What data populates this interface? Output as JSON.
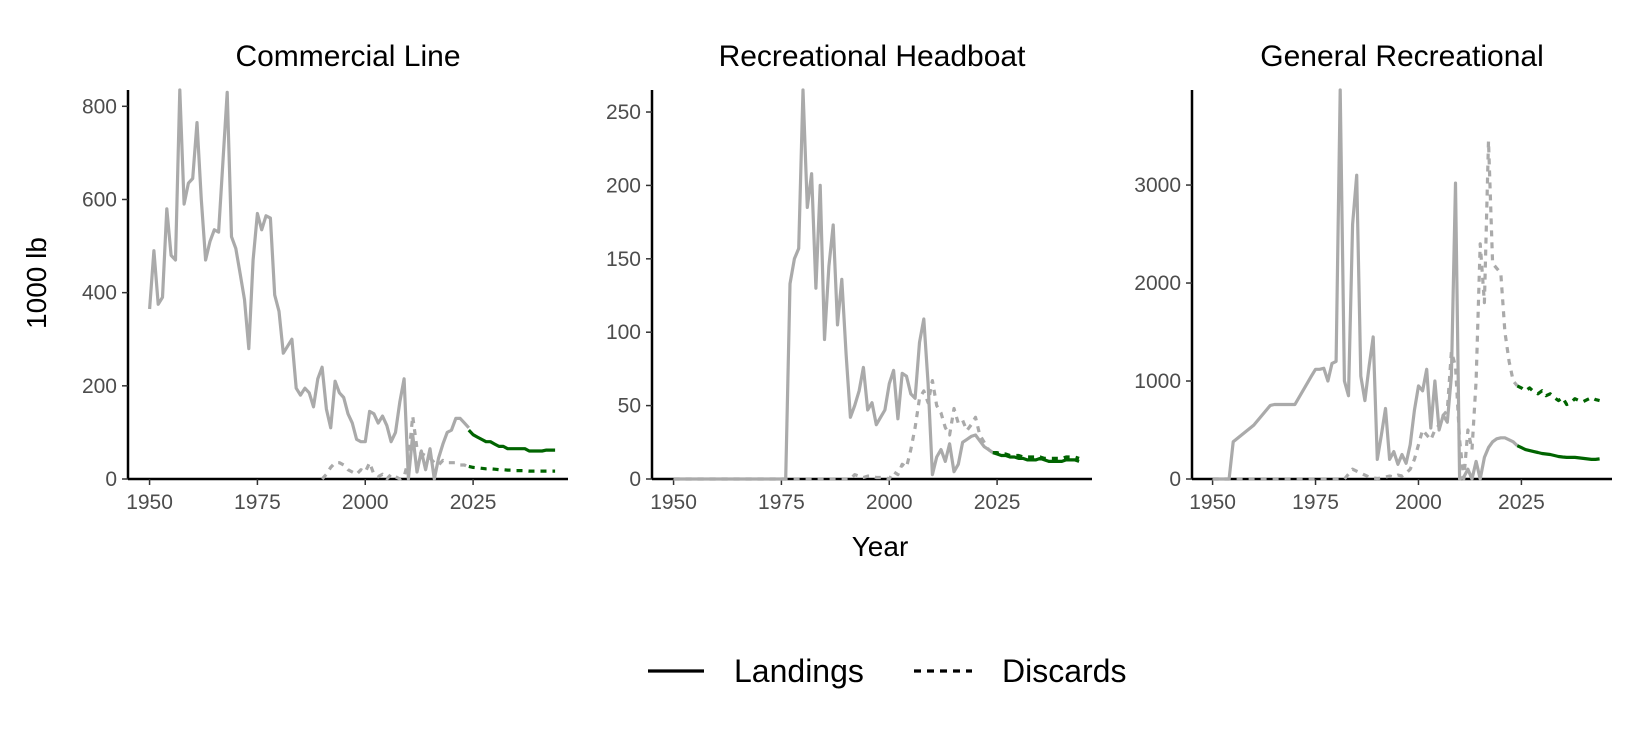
{
  "figure": {
    "ylabel": "1000 lb",
    "xlabel": "Year",
    "legend": {
      "placement": "bottom",
      "items": [
        {
          "label": "Landings",
          "linestyle": "solid"
        },
        {
          "label": "Discards",
          "linestyle": "dashed"
        }
      ]
    },
    "colors": {
      "historical": "#aaaaaa",
      "projection": "#006400",
      "axis": "#000000",
      "tick_text": "#4d4d4d"
    }
  },
  "chart_data": [
    {
      "type": "line",
      "title": "Commercial Line",
      "xlabel": "Year",
      "ylabel": "1000 lb",
      "xlim": [
        1945,
        2047
      ],
      "ylim": [
        0,
        835
      ],
      "xticks": [
        1950,
        1975,
        2000,
        2025
      ],
      "yticks": [
        0,
        200,
        400,
        600,
        800
      ],
      "grid": false,
      "series": [
        {
          "name": "Landings",
          "style": "solid",
          "period": "historical",
          "x": [
            1950,
            1951,
            1952,
            1953,
            1954,
            1955,
            1956,
            1957,
            1958,
            1959,
            1960,
            1961,
            1962,
            1963,
            1964,
            1965,
            1966,
            1967,
            1968,
            1969,
            1970,
            1971,
            1972,
            1973,
            1974,
            1975,
            1976,
            1977,
            1978,
            1979,
            1980,
            1981,
            1982,
            1983,
            1984,
            1985,
            1986,
            1987,
            1988,
            1989,
            1990,
            1991,
            1992,
            1993,
            1994,
            1995,
            1996,
            1997,
            1998,
            1999,
            2000,
            2001,
            2002,
            2003,
            2004,
            2005,
            2006,
            2007,
            2008,
            2009,
            2010,
            2011,
            2012,
            2013,
            2014,
            2015,
            2016,
            2017,
            2018,
            2019,
            2020,
            2021,
            2022,
            2023,
            2024
          ],
          "y": [
            365,
            490,
            375,
            390,
            580,
            480,
            470,
            835,
            590,
            635,
            645,
            765,
            600,
            470,
            510,
            535,
            530,
            680,
            830,
            520,
            495,
            440,
            385,
            280,
            470,
            570,
            535,
            565,
            560,
            395,
            360,
            270,
            285,
            300,
            195,
            180,
            195,
            185,
            155,
            215,
            240,
            150,
            110,
            210,
            185,
            175,
            140,
            120,
            85,
            80,
            80,
            145,
            140,
            120,
            135,
            115,
            80,
            100,
            165,
            215,
            0,
            95,
            15,
            60,
            20,
            65,
            0,
            45,
            75,
            100,
            105,
            130,
            130,
            120,
            110
          ]
        },
        {
          "name": "Discards",
          "style": "dashed",
          "period": "historical",
          "x": [
            1990,
            1991,
            1992,
            1993,
            1994,
            1995,
            1996,
            1997,
            1998,
            1999,
            2000,
            2001,
            2002,
            2003,
            2004,
            2005,
            2006,
            2007,
            2008,
            2009,
            2010,
            2011,
            2012,
            2013,
            2014,
            2015,
            2016,
            2017,
            2018,
            2019,
            2020,
            2021,
            2022,
            2023,
            2024
          ],
          "y": [
            0,
            10,
            25,
            35,
            35,
            30,
            20,
            15,
            10,
            20,
            15,
            35,
            10,
            5,
            10,
            0,
            10,
            5,
            0,
            5,
            40,
            135,
            65,
            55,
            50,
            45,
            35,
            30,
            40,
            35,
            35,
            35,
            30,
            30,
            25
          ]
        },
        {
          "name": "Landings",
          "style": "solid",
          "period": "projection",
          "x": [
            2024,
            2025,
            2026,
            2027,
            2028,
            2029,
            2030,
            2031,
            2032,
            2033,
            2034,
            2035,
            2036,
            2037,
            2038,
            2039,
            2040,
            2041,
            2042,
            2043,
            2044
          ],
          "y": [
            105,
            95,
            90,
            85,
            80,
            80,
            75,
            70,
            70,
            65,
            65,
            65,
            65,
            65,
            60,
            60,
            60,
            60,
            62,
            62,
            62
          ]
        },
        {
          "name": "Discards",
          "style": "dashed",
          "period": "projection",
          "x": [
            2024,
            2025,
            2026,
            2027,
            2028,
            2029,
            2030,
            2031,
            2032,
            2033,
            2034,
            2035,
            2036,
            2037,
            2038,
            2039,
            2040,
            2041,
            2042,
            2043,
            2044
          ],
          "y": [
            27,
            25,
            24,
            23,
            22,
            22,
            21,
            20,
            20,
            19,
            19,
            18,
            18,
            18,
            17,
            17,
            17,
            17,
            17,
            17,
            17
          ]
        }
      ]
    },
    {
      "type": "line",
      "title": "Recreational Headboat",
      "xlabel": "Year",
      "ylabel": "1000 lb",
      "xlim": [
        1945,
        2047
      ],
      "ylim": [
        0,
        265
      ],
      "xticks": [
        1950,
        1975,
        2000,
        2025
      ],
      "yticks": [
        0,
        50,
        100,
        150,
        200,
        250
      ],
      "grid": false,
      "series": [
        {
          "name": "Landings",
          "style": "solid",
          "period": "historical",
          "x": [
            1950,
            1976,
            1977,
            1978,
            1979,
            1980,
            1981,
            1982,
            1983,
            1984,
            1985,
            1986,
            1987,
            1988,
            1989,
            1990,
            1991,
            1992,
            1993,
            1994,
            1995,
            1996,
            1997,
            1998,
            1999,
            2000,
            2001,
            2002,
            2003,
            2004,
            2005,
            2006,
            2007,
            2008,
            2009,
            2010,
            2011,
            2012,
            2013,
            2014,
            2015,
            2016,
            2017,
            2018,
            2019,
            2020,
            2021,
            2022,
            2023,
            2024
          ],
          "y": [
            0,
            0,
            133,
            150,
            157,
            265,
            185,
            208,
            130,
            200,
            95,
            145,
            173,
            105,
            136,
            85,
            42,
            50,
            60,
            76,
            47,
            52,
            37,
            42,
            47,
            65,
            74,
            41,
            72,
            70,
            58,
            55,
            93,
            109,
            65,
            3,
            15,
            20,
            12,
            24,
            5,
            10,
            25,
            27,
            29,
            30,
            26,
            22,
            20,
            18
          ]
        },
        {
          "name": "Discards",
          "style": "dashed",
          "period": "historical",
          "x": [
            1950,
            1991,
            1992,
            1993,
            1994,
            1995,
            1996,
            1997,
            1998,
            1999,
            2000,
            2001,
            2002,
            2003,
            2004,
            2005,
            2006,
            2007,
            2008,
            2009,
            2010,
            2011,
            2012,
            2013,
            2014,
            2015,
            2016,
            2017,
            2018,
            2019,
            2020,
            2021,
            2022,
            2023,
            2024
          ],
          "y": [
            0,
            0,
            3,
            2,
            1,
            2,
            2,
            1,
            1,
            1,
            0,
            5,
            3,
            10,
            8,
            20,
            35,
            55,
            60,
            52,
            67,
            50,
            45,
            35,
            30,
            48,
            38,
            40,
            33,
            37,
            42,
            30,
            25,
            20,
            18
          ]
        },
        {
          "name": "Landings",
          "style": "solid",
          "period": "projection",
          "x": [
            2024,
            2025,
            2026,
            2027,
            2028,
            2029,
            2030,
            2031,
            2032,
            2033,
            2034,
            2035,
            2036,
            2037,
            2038,
            2039,
            2040,
            2041,
            2042,
            2043,
            2044
          ],
          "y": [
            18,
            17,
            16,
            16,
            15,
            15,
            14,
            14,
            13,
            13,
            13,
            14,
            13,
            12,
            12,
            12,
            12,
            13,
            13,
            13,
            12
          ]
        },
        {
          "name": "Discards",
          "style": "dashed",
          "period": "projection",
          "x": [
            2024,
            2025,
            2026,
            2027,
            2028,
            2029,
            2030,
            2031,
            2032,
            2033,
            2034,
            2035,
            2036,
            2037,
            2038,
            2039,
            2040,
            2041,
            2042,
            2043,
            2044
          ],
          "y": [
            18,
            18,
            17,
            17,
            16,
            16,
            16,
            15,
            15,
            15,
            15,
            15,
            14,
            14,
            14,
            14,
            14,
            15,
            15,
            15,
            14
          ]
        }
      ]
    },
    {
      "type": "line",
      "title": "General Recreational",
      "xlabel": "Year",
      "ylabel": "1000 lb",
      "xlim": [
        1945,
        2047
      ],
      "ylim": [
        0,
        3970
      ],
      "xticks": [
        1950,
        1975,
        2000,
        2025
      ],
      "yticks": [
        0,
        1000,
        2000,
        3000
      ],
      "grid": false,
      "series": [
        {
          "name": "Landings",
          "style": "solid",
          "period": "historical",
          "x": [
            1950,
            1954,
            1955,
            1960,
            1964,
            1965,
            1970,
            1974,
            1975,
            1976,
            1977,
            1978,
            1979,
            1980,
            1981,
            1982,
            1983,
            1984,
            1985,
            1986,
            1987,
            1988,
            1989,
            1990,
            1991,
            1992,
            1993,
            1994,
            1995,
            1996,
            1997,
            1998,
            1999,
            2000,
            2001,
            2002,
            2003,
            2004,
            2005,
            2006,
            2007,
            2008,
            2009,
            2010,
            2011,
            2012,
            2013,
            2014,
            2015,
            2016,
            2017,
            2018,
            2019,
            2020,
            2021,
            2022,
            2023,
            2024
          ],
          "y": [
            0,
            0,
            380,
            550,
            750,
            760,
            760,
            1050,
            1120,
            1120,
            1130,
            1000,
            1180,
            1200,
            3970,
            1000,
            850,
            2600,
            3100,
            1050,
            800,
            1150,
            1450,
            200,
            450,
            720,
            200,
            280,
            150,
            250,
            160,
            350,
            700,
            950,
            900,
            1120,
            520,
            1000,
            500,
            650,
            580,
            1050,
            3020,
            0,
            20,
            100,
            0,
            180,
            0,
            220,
            320,
            380,
            410,
            420,
            420,
            400,
            380,
            340
          ]
        },
        {
          "name": "Discards",
          "style": "dashed",
          "period": "historical",
          "x": [
            1950,
            1982,
            1983,
            1984,
            1985,
            1986,
            1987,
            1988,
            1989,
            1990,
            1991,
            1992,
            1993,
            1994,
            1995,
            1996,
            1997,
            1998,
            1999,
            2000,
            2001,
            2002,
            2003,
            2004,
            2005,
            2006,
            2007,
            2008,
            2009,
            2010,
            2011,
            2012,
            2013,
            2014,
            2015,
            2016,
            2017,
            2018,
            2019,
            2020,
            2021,
            2022,
            2023,
            2024
          ],
          "y": [
            0,
            0,
            50,
            100,
            80,
            60,
            40,
            20,
            10,
            5,
            10,
            20,
            30,
            20,
            40,
            30,
            60,
            100,
            200,
            350,
            500,
            450,
            400,
            500,
            550,
            650,
            700,
            1300,
            1150,
            400,
            0,
            500,
            300,
            1000,
            2400,
            1800,
            3450,
            2200,
            2150,
            2100,
            1500,
            1200,
            1000,
            950
          ]
        },
        {
          "name": "Landings",
          "style": "solid",
          "period": "projection",
          "x": [
            2024,
            2025,
            2026,
            2027,
            2028,
            2029,
            2030,
            2031,
            2032,
            2033,
            2034,
            2035,
            2036,
            2037,
            2038,
            2039,
            2040,
            2041,
            2042,
            2043,
            2044
          ],
          "y": [
            340,
            320,
            300,
            290,
            280,
            270,
            260,
            255,
            250,
            240,
            230,
            225,
            220,
            220,
            220,
            215,
            210,
            205,
            200,
            200,
            205
          ]
        },
        {
          "name": "Discards",
          "style": "dashed",
          "period": "projection",
          "x": [
            2024,
            2025,
            2026,
            2027,
            2028,
            2029,
            2030,
            2031,
            2032,
            2033,
            2034,
            2035,
            2036,
            2037,
            2038,
            2039,
            2040,
            2041,
            2042,
            2043,
            2044
          ],
          "y": [
            950,
            930,
            900,
            930,
            890,
            870,
            900,
            850,
            870,
            830,
            800,
            830,
            760,
            780,
            820,
            800,
            790,
            810,
            830,
            810,
            800
          ]
        }
      ]
    }
  ]
}
